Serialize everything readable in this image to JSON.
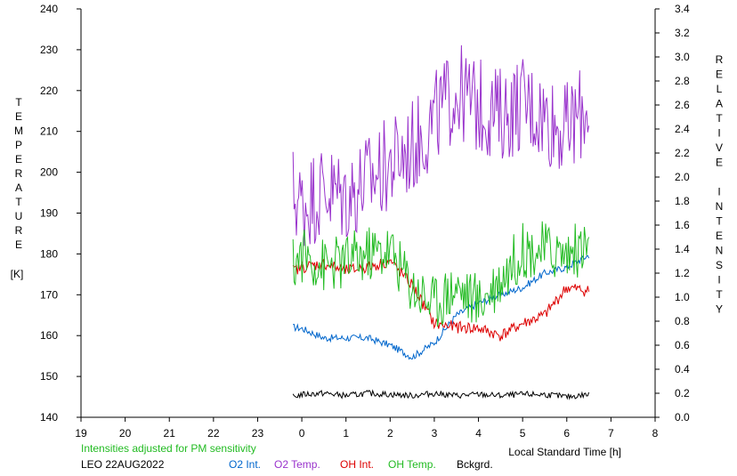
{
  "chart_data": {
    "type": "line",
    "xlabel": "Local Standard Time [h]",
    "ylabel_left": "TEMPERATURE",
    "ylabel_left_unit": "[K]",
    "ylabel_right": "RELATIVE INTENSITY",
    "xlim": [
      19,
      32
    ],
    "ylim_left": [
      140,
      240
    ],
    "ylim_right": [
      0.0,
      3.4
    ],
    "x_ticks": [
      19,
      20,
      21,
      22,
      23,
      24,
      25,
      26,
      27,
      28,
      29,
      30,
      31,
      32
    ],
    "x_tick_labels": [
      "19",
      "20",
      "21",
      "22",
      "23",
      "0",
      "1",
      "2",
      "3",
      "4",
      "5",
      "6",
      "7",
      "8"
    ],
    "y_left_ticks": [
      "140",
      "150",
      "160",
      "170",
      "180",
      "190",
      "200",
      "210",
      "220",
      "230",
      "240"
    ],
    "y_right_ticks": [
      "0.0",
      "0.2",
      "0.4",
      "0.6",
      "0.8",
      "1.0",
      "1.2",
      "1.4",
      "1.6",
      "1.8",
      "2.0",
      "2.2",
      "2.4",
      "2.6",
      "2.8",
      "3.0",
      "3.2",
      "3.4"
    ],
    "note": "Intensities adjusted for PM sensitivity",
    "station": "LEO 22AUG2022",
    "grid": false,
    "legend_position": "bottom",
    "series": [
      {
        "name": "O2 Int.",
        "axis": "right",
        "color": "#0066cc",
        "x": [
          23.8,
          24.0,
          24.5,
          25.0,
          25.5,
          26.0,
          26.5,
          27.0,
          27.5,
          28.0,
          28.5,
          29.0,
          29.5,
          30.0,
          30.5
        ],
        "values": [
          0.75,
          0.74,
          0.66,
          0.66,
          0.66,
          0.6,
          0.5,
          0.62,
          0.85,
          0.95,
          1.02,
          1.08,
          1.2,
          1.25,
          1.35
        ]
      },
      {
        "name": "O2 Temp.",
        "axis": "left",
        "color": "#9933cc",
        "x": [
          23.8,
          24.0,
          24.5,
          25.0,
          25.5,
          26.0,
          26.5,
          27.0,
          27.5,
          28.0,
          28.5,
          29.0,
          29.5,
          30.0,
          30.5
        ],
        "values": [
          195,
          192,
          196,
          194,
          198,
          202,
          206,
          213,
          220,
          216,
          214,
          217,
          214,
          210,
          217
        ]
      },
      {
        "name": "OH Int.",
        "axis": "right",
        "color": "#dd0000",
        "x": [
          23.8,
          24.0,
          24.5,
          25.0,
          25.5,
          26.0,
          26.5,
          27.0,
          27.5,
          28.0,
          28.5,
          29.0,
          29.5,
          30.0,
          30.5
        ],
        "values": [
          1.22,
          1.25,
          1.28,
          1.22,
          1.25,
          1.3,
          1.1,
          0.78,
          0.75,
          0.74,
          0.68,
          0.78,
          0.85,
          1.08,
          1.05
        ]
      },
      {
        "name": "OH Temp.",
        "axis": "left",
        "color": "#22bb22",
        "x": [
          23.8,
          24.0,
          24.5,
          25.0,
          25.5,
          26.0,
          26.5,
          27.0,
          27.5,
          28.0,
          28.5,
          29.0,
          29.5,
          30.0,
          30.5
        ],
        "values": [
          177,
          180,
          177,
          178,
          180,
          181,
          172,
          168,
          172,
          168,
          174,
          181,
          181,
          180,
          182
        ]
      },
      {
        "name": "Bckgrd.",
        "axis": "right",
        "color": "#000000",
        "x": [
          23.8,
          24.0,
          24.5,
          25.0,
          25.5,
          26.0,
          26.5,
          27.0,
          27.5,
          28.0,
          28.5,
          29.0,
          29.5,
          30.0,
          30.5
        ],
        "values": [
          0.17,
          0.19,
          0.2,
          0.18,
          0.2,
          0.19,
          0.18,
          0.2,
          0.18,
          0.19,
          0.18,
          0.19,
          0.19,
          0.17,
          0.19
        ]
      }
    ]
  }
}
